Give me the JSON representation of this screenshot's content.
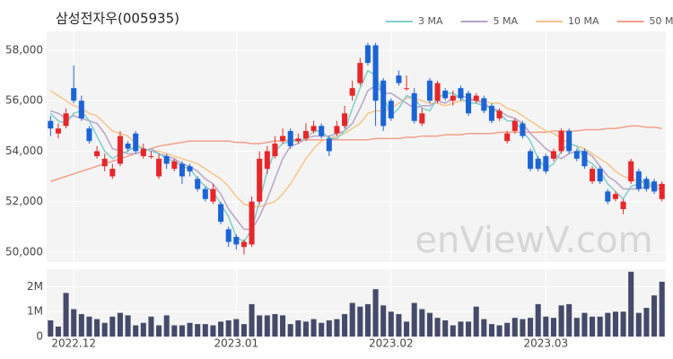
{
  "chart_data": [
    {
      "type": "candlestick",
      "title": "삼성전자우(005935)",
      "watermark": "enViewV.com",
      "up_color": "#e8262a",
      "down_color": "#1c64d6",
      "grid": true,
      "ylim": [
        49600,
        58750
      ],
      "yticks": [
        {
          "value": 50000,
          "label": "50,000"
        },
        {
          "value": 52000,
          "label": "52,000"
        },
        {
          "value": 54000,
          "label": "54,000"
        },
        {
          "value": 56000,
          "label": "56,000"
        },
        {
          "value": 58000,
          "label": "58,000"
        }
      ],
      "open": [
        55200,
        54700,
        55000,
        56500,
        56000,
        54900,
        53800,
        53400,
        53000,
        53500,
        54300,
        54700,
        53800,
        53800,
        53000,
        53800,
        53300,
        53500,
        53400,
        52900,
        52500,
        52000,
        51900,
        50900,
        50600,
        50200,
        50300,
        52000,
        53300,
        53800,
        54400,
        54800,
        54400,
        54500,
        54800,
        55000,
        54500,
        54700,
        55000,
        56200,
        56700,
        58200,
        58200,
        56800,
        56000,
        57000,
        56500,
        56300,
        55100,
        56800,
        56000,
        56400,
        56000,
        56500,
        56300,
        56000,
        56100,
        55800,
        55300,
        54400,
        54800,
        55100,
        54000,
        53700,
        53800,
        53700,
        54000,
        54800,
        54000,
        54000,
        52800,
        53300,
        52400,
        52100,
        51700,
        52800,
        53200,
        52900,
        52800,
        52100
      ],
      "high": [
        55400,
        55100,
        55700,
        57400,
        56200,
        55000,
        54200,
        53900,
        53500,
        54800,
        54400,
        54800,
        54300,
        54000,
        53900,
        53900,
        53700,
        53600,
        53500,
        53000,
        52600,
        52700,
        52000,
        51000,
        50700,
        50500,
        52200,
        54000,
        54200,
        54600,
        54900,
        54900,
        54700,
        55100,
        55200,
        55100,
        54600,
        55200,
        55800,
        56800,
        57700,
        58300,
        58300,
        56900,
        56100,
        57200,
        57000,
        56500,
        55700,
        56900,
        56800,
        56500,
        56400,
        56600,
        56400,
        56300,
        56200,
        55900,
        55700,
        54800,
        55300,
        55200,
        54100,
        53800,
        53900,
        54100,
        54900,
        54900,
        54100,
        54100,
        53400,
        53400,
        52500,
        52400,
        52100,
        53700,
        53300,
        53000,
        52900,
        52800
      ],
      "low": [
        54600,
        54500,
        54900,
        55900,
        55200,
        54300,
        53700,
        53200,
        52900,
        53400,
        54000,
        53900,
        53700,
        53700,
        52900,
        53300,
        53200,
        52700,
        53000,
        52400,
        52000,
        51900,
        51100,
        50200,
        50100,
        49900,
        50200,
        51900,
        53100,
        53700,
        54300,
        54100,
        54300,
        54400,
        54700,
        54500,
        53800,
        54600,
        54900,
        56000,
        56600,
        57400,
        55000,
        54800,
        55200,
        56600,
        56400,
        55100,
        55000,
        55900,
        55900,
        56000,
        55800,
        56000,
        55400,
        55900,
        55500,
        55100,
        55200,
        54300,
        54700,
        54500,
        53200,
        53200,
        53100,
        53600,
        53900,
        53900,
        53600,
        53300,
        52700,
        52700,
        51900,
        52000,
        51500,
        52700,
        52400,
        52400,
        52300,
        52000
      ],
      "close": [
        54900,
        54900,
        55500,
        56000,
        55300,
        54400,
        54000,
        53700,
        53300,
        54600,
        54100,
        54000,
        54100,
        53800,
        53700,
        53500,
        53600,
        53000,
        53200,
        52500,
        52100,
        52500,
        51200,
        50400,
        50300,
        50400,
        52000,
        53700,
        54000,
        54300,
        54600,
        54200,
        54500,
        54800,
        55000,
        54600,
        54000,
        55000,
        55500,
        56500,
        57500,
        57500,
        56000,
        55000,
        55300,
        56700,
        56500,
        55200,
        55500,
        56000,
        56700,
        56100,
        56200,
        56100,
        55500,
        56200,
        55600,
        55200,
        55600,
        54700,
        55200,
        54600,
        53300,
        53300,
        53200,
        54000,
        54800,
        54000,
        53700,
        53400,
        53300,
        52800,
        52000,
        52300,
        52000,
        53600,
        52500,
        52500,
        52400,
        52700
      ],
      "lines": [
        {
          "name": "3 MA",
          "color": "#7ecfc9",
          "values": [
            55500,
            55200,
            55100,
            55500,
            55600,
            55200,
            54600,
            54000,
            53700,
            53900,
            54000,
            54200,
            54100,
            54000,
            53900,
            53700,
            53600,
            53400,
            53300,
            52900,
            52600,
            52400,
            51900,
            51400,
            50600,
            50400,
            50900,
            52000,
            53200,
            54000,
            54300,
            54400,
            54400,
            54500,
            54800,
            54800,
            54500,
            54500,
            54800,
            55700,
            56500,
            57200,
            57000,
            56200,
            55400,
            55700,
            56200,
            56100,
            55700,
            55600,
            56100,
            56300,
            56300,
            56100,
            55900,
            55900,
            55800,
            55700,
            55500,
            55200,
            55200,
            54800,
            54400,
            53700,
            53300,
            53500,
            54000,
            54300,
            54200,
            53700,
            53500,
            53200,
            52700,
            52400,
            52100,
            52600,
            52700,
            52900,
            52500,
            52500
          ]
        },
        {
          "name": "5 MA",
          "color": "#b9a3c9",
          "values": [
            55600,
            55500,
            55300,
            55400,
            55300,
            55200,
            55100,
            54700,
            54100,
            54000,
            53900,
            53900,
            54000,
            54100,
            53900,
            53800,
            53700,
            53500,
            53400,
            53200,
            52900,
            52700,
            52300,
            51700,
            51300,
            50900,
            50900,
            51400,
            52100,
            52900,
            53700,
            54200,
            54300,
            54500,
            54600,
            54600,
            54600,
            54700,
            54800,
            55100,
            55700,
            56400,
            56600,
            56300,
            56300,
            56100,
            55900,
            55700,
            55800,
            55800,
            56000,
            55900,
            56100,
            56200,
            56100,
            56000,
            55900,
            55700,
            55600,
            55400,
            55300,
            55100,
            54700,
            54400,
            54100,
            53900,
            53700,
            53900,
            54000,
            54000,
            53800,
            53400,
            53000,
            52800,
            52500,
            52500,
            52500,
            52600,
            52600,
            52700
          ]
        },
        {
          "name": "10 MA",
          "color": "#f5c58a",
          "values": [
            56400,
            56200,
            56000,
            55800,
            55700,
            55500,
            55400,
            55100,
            54800,
            54700,
            54600,
            54300,
            54100,
            54000,
            54000,
            53900,
            53800,
            53700,
            53600,
            53500,
            53300,
            53100,
            52900,
            52600,
            52200,
            51900,
            51800,
            51800,
            51900,
            52000,
            52300,
            52700,
            53200,
            53700,
            54100,
            54400,
            54500,
            54600,
            54700,
            54900,
            55100,
            55500,
            55600,
            55600,
            55700,
            55900,
            56100,
            56100,
            56000,
            55900,
            55900,
            55800,
            55900,
            56000,
            56000,
            56000,
            56000,
            55900,
            55900,
            55700,
            55600,
            55400,
            55200,
            55000,
            54800,
            54700,
            54500,
            54300,
            54200,
            54100,
            53900,
            53700,
            53500,
            53200,
            53000,
            52900,
            52800,
            52700,
            52600,
            52500
          ]
        },
        {
          "name": "50 MA",
          "color": "#f2a08a",
          "values": [
            52800,
            52900,
            53000,
            53100,
            53200,
            53300,
            53400,
            53500,
            53600,
            53700,
            53800,
            53900,
            54000,
            54100,
            54200,
            54250,
            54300,
            54350,
            54400,
            54400,
            54400,
            54400,
            54400,
            54400,
            54350,
            54350,
            54300,
            54300,
            54350,
            54400,
            54400,
            54450,
            54450,
            54450,
            54450,
            54450,
            54450,
            54450,
            54450,
            54450,
            54450,
            54450,
            54500,
            54500,
            54500,
            54500,
            54550,
            54550,
            54600,
            54600,
            54600,
            54650,
            54650,
            54650,
            54700,
            54700,
            54700,
            54700,
            54750,
            54750,
            54750,
            54750,
            54750,
            54750,
            54750,
            54800,
            54800,
            54800,
            54800,
            54850,
            54850,
            54850,
            54900,
            54900,
            54950,
            55000,
            55000,
            54950,
            54950,
            54900
          ]
        }
      ]
    },
    {
      "type": "bar",
      "color": "#454a6a",
      "categories": [
        null,
        null,
        null,
        "2022.12",
        null,
        null,
        null,
        null,
        null,
        null,
        null,
        null,
        null,
        null,
        null,
        null,
        null,
        null,
        null,
        null,
        null,
        null,
        null,
        null,
        "2023.01",
        null,
        null,
        null,
        null,
        null,
        null,
        null,
        null,
        null,
        null,
        null,
        null,
        null,
        null,
        null,
        null,
        null,
        null,
        null,
        "2023.02",
        null,
        null,
        null,
        null,
        null,
        null,
        null,
        null,
        null,
        null,
        null,
        null,
        null,
        null,
        null,
        null,
        null,
        null,
        null,
        "2023.03",
        null,
        null,
        null,
        null,
        null,
        null,
        null,
        null,
        null,
        null,
        null,
        null,
        null,
        null,
        null
      ],
      "values": [
        650000,
        400000,
        1750000,
        1100000,
        900000,
        800000,
        700000,
        550000,
        800000,
        950000,
        850000,
        450000,
        550000,
        800000,
        450000,
        850000,
        450000,
        450000,
        550000,
        500000,
        500000,
        450000,
        600000,
        650000,
        700000,
        500000,
        1300000,
        850000,
        850000,
        900000,
        850000,
        500000,
        650000,
        600000,
        700000,
        550000,
        650000,
        700000,
        900000,
        1350000,
        1200000,
        1300000,
        1900000,
        1250000,
        1000000,
        900000,
        600000,
        1350000,
        1100000,
        950000,
        750000,
        650000,
        450000,
        600000,
        600000,
        1200000,
        700000,
        500000,
        450000,
        550000,
        750000,
        700000,
        750000,
        1300000,
        800000,
        750000,
        1250000,
        1300000,
        750000,
        950000,
        800000,
        800000,
        950000,
        1000000,
        1000000,
        2600000,
        950000,
        1150000,
        1650000,
        2200000
      ],
      "ylim": [
        0,
        2700000
      ],
      "yticks": [
        0,
        {
          "value": 1000000,
          "label": "1M"
        },
        {
          "value": 2000000,
          "label": "2M"
        }
      ]
    }
  ]
}
